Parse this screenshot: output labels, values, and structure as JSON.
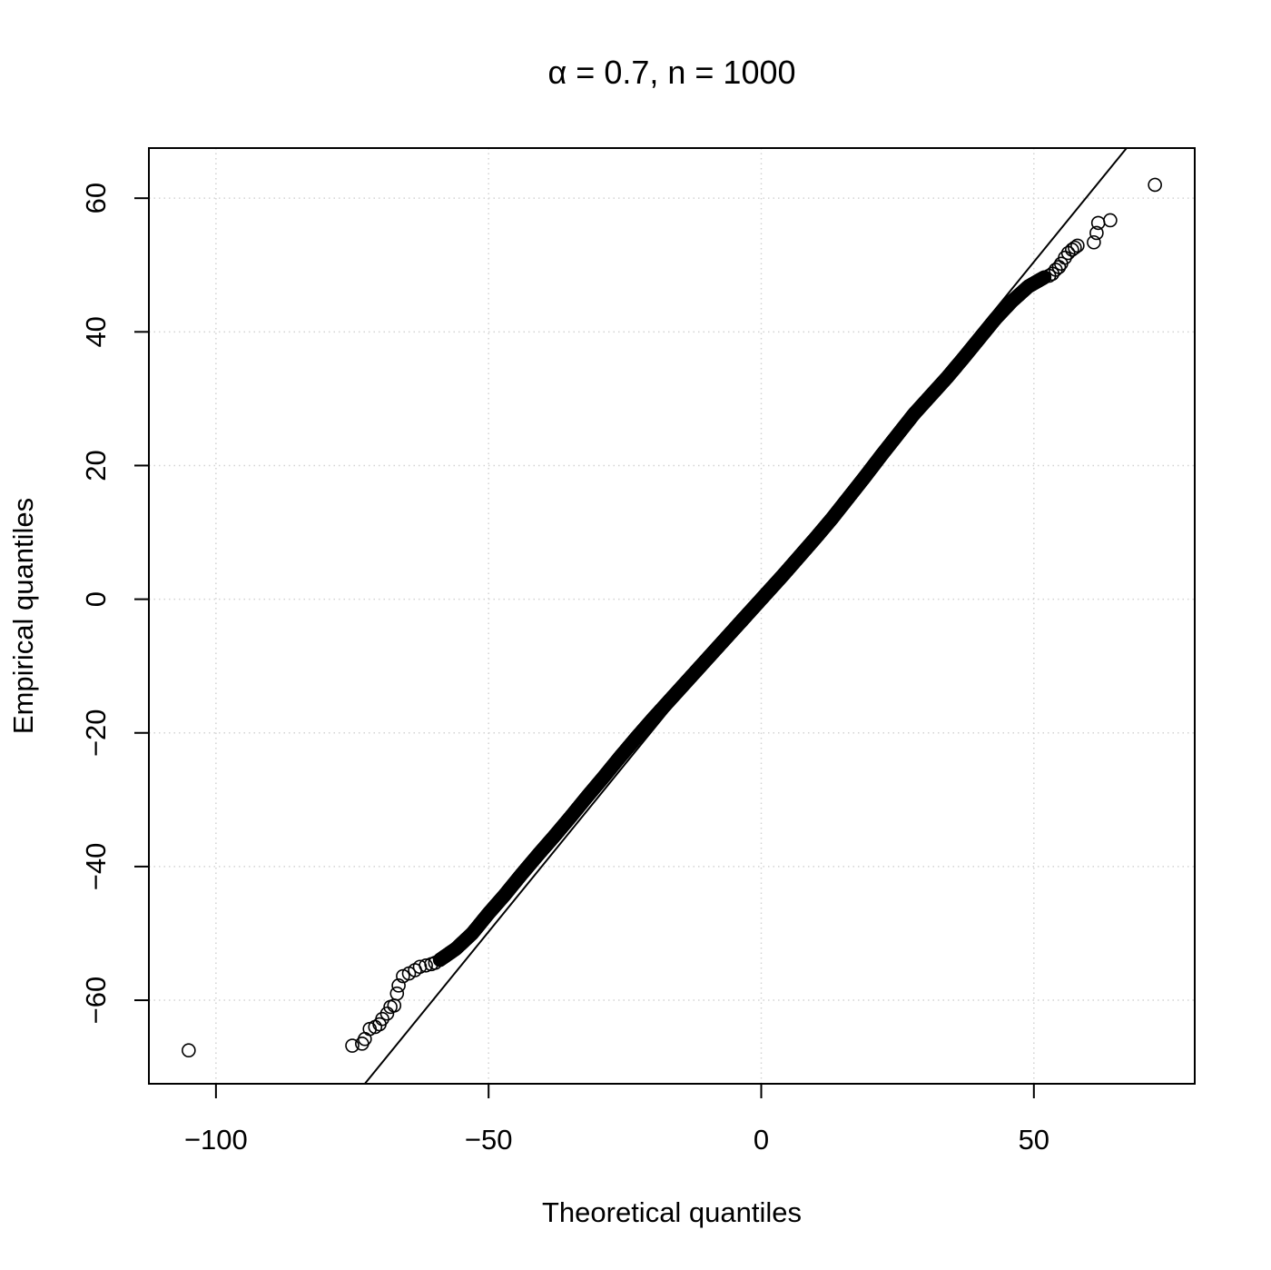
{
  "chart_data": {
    "type": "scatter",
    "title": "α = 0.7, n = 1000",
    "xlabel": "Theoretical quantiles",
    "ylabel": "Empirical quantiles",
    "xlim": [
      -112.3,
      79.5
    ],
    "ylim": [
      -72.5,
      67.5
    ],
    "x_ticks": [
      -100,
      -50,
      0,
      50
    ],
    "y_ticks": [
      -60,
      -40,
      -20,
      0,
      20,
      40,
      60
    ],
    "x_tick_labels": [
      "−100",
      "−50",
      "0",
      "50"
    ],
    "y_tick_labels": [
      "−60",
      "−40",
      "−20",
      "0",
      "20",
      "40",
      "60"
    ],
    "grid": true,
    "grid_style": "dotted",
    "reference_line": {
      "points": [
        [
          -72.7,
          -72.5
        ],
        [
          67.0,
          67.5
        ]
      ]
    },
    "marker": "open-circle",
    "n": 1000,
    "series": [
      {
        "outlier_points": [
          [
            -105.0,
            -67.5
          ],
          [
            -75.0,
            -66.8
          ],
          [
            -73.2,
            -66.5
          ],
          [
            -72.7,
            -65.8
          ],
          [
            -71.8,
            -64.3
          ],
          [
            -70.8,
            -64.0
          ],
          [
            -70.0,
            -63.6
          ],
          [
            -69.5,
            -62.8
          ],
          [
            -68.6,
            -62.0
          ],
          [
            -68.0,
            -61.0
          ],
          [
            -67.3,
            -60.8
          ],
          [
            -66.8,
            -59.0
          ],
          [
            -66.5,
            -57.8
          ],
          [
            -65.7,
            -56.4
          ],
          [
            -64.6,
            -56.0
          ],
          [
            -63.5,
            -55.5
          ],
          [
            -62.6,
            -55.0
          ],
          [
            -61.5,
            -54.8
          ],
          [
            -60.5,
            -54.6
          ],
          [
            -59.8,
            -54.4
          ],
          [
            61.0,
            53.4
          ],
          [
            61.5,
            54.8
          ],
          [
            61.8,
            56.3
          ],
          [
            64.0,
            56.7
          ],
          [
            72.2,
            62.0
          ],
          [
            58.0,
            52.9
          ],
          [
            57.5,
            52.6
          ],
          [
            57.0,
            52.3
          ],
          [
            56.3,
            51.8
          ],
          [
            55.7,
            51.1
          ],
          [
            55.0,
            50.2
          ],
          [
            54.6,
            49.7
          ],
          [
            54.0,
            49.3
          ],
          [
            53.4,
            48.7
          ],
          [
            52.8,
            48.4
          ]
        ],
        "body_curve": [
          [
            -59.0,
            -54.0
          ],
          [
            -56.0,
            -52.3
          ],
          [
            -53.0,
            -50.0
          ],
          [
            -50.0,
            -47.0
          ],
          [
            -47.0,
            -44.2
          ],
          [
            -44.0,
            -41.2
          ],
          [
            -41.0,
            -38.3
          ],
          [
            -38.0,
            -35.5
          ],
          [
            -35.0,
            -32.6
          ],
          [
            -32.0,
            -29.6
          ],
          [
            -29.0,
            -26.7
          ],
          [
            -26.0,
            -23.7
          ],
          [
            -23.0,
            -20.8
          ],
          [
            -20.0,
            -18.0
          ],
          [
            -17.0,
            -15.3
          ],
          [
            -14.0,
            -12.6
          ],
          [
            -11.0,
            -9.9
          ],
          [
            -8.0,
            -7.2
          ],
          [
            -5.0,
            -4.5
          ],
          [
            -2.0,
            -1.8
          ],
          [
            1.0,
            0.9
          ],
          [
            4.0,
            3.6
          ],
          [
            7.0,
            6.4
          ],
          [
            10.0,
            9.2
          ],
          [
            13.0,
            12.1
          ],
          [
            16.0,
            15.2
          ],
          [
            19.0,
            18.3
          ],
          [
            22.0,
            21.5
          ],
          [
            25.0,
            24.6
          ],
          [
            28.0,
            27.7
          ],
          [
            31.0,
            30.4
          ],
          [
            34.0,
            33.1
          ],
          [
            37.0,
            36.0
          ],
          [
            40.0,
            39.0
          ],
          [
            43.0,
            42.0
          ],
          [
            46.0,
            44.6
          ],
          [
            49.0,
            46.8
          ],
          [
            52.0,
            48.2
          ]
        ]
      }
    ]
  }
}
